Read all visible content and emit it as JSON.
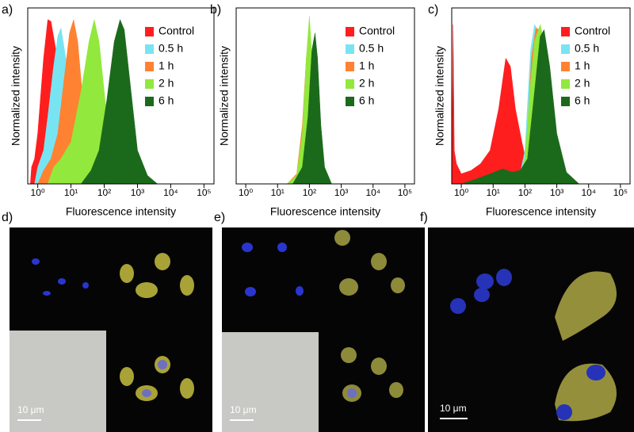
{
  "chart_data": [
    {
      "type": "area",
      "panel_label": "a)",
      "xlabel": "Fluorescence intensity",
      "ylabel": "Normalized intensity",
      "xscale": "log",
      "xlim": [
        0.5,
        200000
      ],
      "ylim": [
        0,
        1.05
      ],
      "xticks": [
        {
          "value": 1,
          "label": "10⁰"
        },
        {
          "value": 10,
          "label": "10¹"
        },
        {
          "value": 100,
          "label": "10²"
        },
        {
          "value": 1000,
          "label": "10³"
        },
        {
          "value": 10000,
          "label": "10⁴"
        },
        {
          "value": 100000,
          "label": "10⁵"
        }
      ],
      "series": [
        {
          "name": "Control",
          "color": "#ff1e1e",
          "x": [
            0.6,
            0.65,
            0.8,
            1,
            1.5,
            2,
            2.5,
            3.5,
            5,
            8,
            12
          ],
          "values": [
            0,
            0.1,
            0.15,
            0.3,
            0.75,
            0.98,
            0.97,
            0.8,
            0.45,
            0.1,
            0
          ]
        },
        {
          "name": "0.5 h",
          "color": "#78e4f2",
          "x": [
            0.8,
            1,
            1.5,
            2,
            3,
            4,
            5,
            7,
            10,
            15,
            25
          ],
          "values": [
            0,
            0.1,
            0.2,
            0.4,
            0.7,
            0.88,
            0.93,
            0.75,
            0.4,
            0.1,
            0
          ]
        },
        {
          "name": "1 h",
          "color": "#ff8232",
          "x": [
            1,
            1.5,
            2.5,
            4,
            6,
            9,
            12,
            16,
            25,
            40,
            70
          ],
          "values": [
            0,
            0.08,
            0.15,
            0.3,
            0.6,
            0.9,
            0.98,
            0.85,
            0.4,
            0.1,
            0
          ]
        },
        {
          "name": "2 h",
          "color": "#92e83c",
          "x": [
            2,
            3,
            5,
            10,
            20,
            35,
            50,
            70,
            120,
            200,
            400
          ],
          "values": [
            0,
            0.1,
            0.15,
            0.25,
            0.55,
            0.85,
            0.98,
            0.85,
            0.4,
            0.1,
            0
          ]
        },
        {
          "name": "6 h",
          "color": "#1b6a1b",
          "x": [
            20,
            40,
            70,
            120,
            200,
            300,
            400,
            600,
            1000,
            2000,
            4000
          ],
          "values": [
            0,
            0.08,
            0.2,
            0.5,
            0.85,
            0.98,
            0.92,
            0.6,
            0.2,
            0.05,
            0
          ]
        }
      ]
    },
    {
      "type": "area",
      "panel_label": "b)",
      "xlabel": "Fluorescence intensity",
      "ylabel": "Normalized intensity",
      "xscale": "log",
      "xlim": [
        0.5,
        200000
      ],
      "ylim": [
        0,
        1.05
      ],
      "xticks": [
        {
          "value": 1,
          "label": "10⁰"
        },
        {
          "value": 10,
          "label": "10¹"
        },
        {
          "value": 100,
          "label": "10²"
        },
        {
          "value": 1000,
          "label": "10³"
        },
        {
          "value": 10000,
          "label": "10⁴"
        },
        {
          "value": 100000,
          "label": "10⁵"
        }
      ],
      "series": [
        {
          "name": "Control",
          "color": "#ff1e1e",
          "x": [
            20,
            40,
            60,
            80,
            100,
            120,
            150,
            200,
            300
          ],
          "values": [
            0,
            0.05,
            0.3,
            0.7,
            0.85,
            0.7,
            0.35,
            0.08,
            0
          ]
        },
        {
          "name": "0.5 h",
          "color": "#78e4f2",
          "x": [
            20,
            40,
            60,
            80,
            100,
            120,
            150,
            200,
            300
          ],
          "values": [
            0,
            0.05,
            0.3,
            0.75,
            0.93,
            0.7,
            0.3,
            0.05,
            0
          ]
        },
        {
          "name": "1 h",
          "color": "#ff8232",
          "x": [
            20,
            40,
            60,
            80,
            100,
            120,
            150,
            200,
            300
          ],
          "values": [
            0,
            0.06,
            0.35,
            0.75,
            0.9,
            0.65,
            0.3,
            0.05,
            0
          ]
        },
        {
          "name": "2 h",
          "color": "#92e83c",
          "x": [
            20,
            40,
            60,
            80,
            100,
            120,
            150,
            200,
            300
          ],
          "values": [
            0,
            0.05,
            0.3,
            0.75,
            1.0,
            0.75,
            0.3,
            0.05,
            0
          ]
        },
        {
          "name": "6 h",
          "color": "#1b6a1b",
          "x": [
            30,
            60,
            90,
            120,
            150,
            180,
            230,
            300,
            500
          ],
          "values": [
            0,
            0.1,
            0.4,
            0.8,
            0.9,
            0.75,
            0.35,
            0.1,
            0
          ]
        }
      ]
    },
    {
      "type": "area",
      "panel_label": "c)",
      "xlabel": "Fluorescence intensity",
      "ylabel": "Normalized intensity",
      "xscale": "log",
      "xlim": [
        0.5,
        200000
      ],
      "ylim": [
        0,
        1.05
      ],
      "xticks": [
        {
          "value": 1,
          "label": "10⁰"
        },
        {
          "value": 10,
          "label": "10¹"
        },
        {
          "value": 100,
          "label": "10²"
        },
        {
          "value": 1000,
          "label": "10³"
        },
        {
          "value": 10000,
          "label": "10⁴"
        },
        {
          "value": 100000,
          "label": "10⁵"
        }
      ],
      "series": [
        {
          "name": "Control",
          "color": "#ff1e1e",
          "x": [
            0.5,
            0.55,
            0.6,
            0.7,
            1,
            2,
            4,
            8,
            15,
            25,
            35,
            50,
            80,
            120,
            150
          ],
          "values": [
            0,
            0.95,
            0.2,
            0.12,
            0.06,
            0.08,
            0.12,
            0.2,
            0.45,
            0.75,
            0.7,
            0.45,
            0.25,
            0.1,
            0
          ]
        },
        {
          "name": "0.5 h",
          "color": "#78e4f2",
          "x": [
            60,
            100,
            150,
            200,
            250,
            300,
            400,
            600,
            1000,
            2000
          ],
          "values": [
            0,
            0.2,
            0.8,
            0.95,
            0.92,
            0.85,
            0.55,
            0.25,
            0.06,
            0
          ]
        },
        {
          "name": "1 h",
          "color": "#ff8232",
          "x": [
            70,
            110,
            160,
            220,
            280,
            350,
            450,
            700,
            1100,
            2200
          ],
          "values": [
            0,
            0.18,
            0.75,
            0.93,
            0.92,
            0.85,
            0.55,
            0.25,
            0.06,
            0
          ]
        },
        {
          "name": "2 h",
          "color": "#92e83c",
          "x": [
            60,
            100,
            150,
            200,
            300,
            400,
            600,
            1000,
            2000
          ],
          "values": [
            0,
            0.15,
            0.6,
            0.85,
            0.95,
            0.85,
            0.45,
            0.1,
            0
          ]
        },
        {
          "name": "6 h",
          "color": "#1b6a1b",
          "x": [
            1,
            3,
            8,
            20,
            40,
            70,
            120,
            200,
            300,
            400,
            600,
            1000,
            2000,
            5000
          ],
          "values": [
            0,
            0.03,
            0.06,
            0.09,
            0.07,
            0.08,
            0.15,
            0.55,
            0.88,
            0.92,
            0.7,
            0.3,
            0.07,
            0
          ]
        }
      ]
    }
  ],
  "images": [
    {
      "panel_label": "d)",
      "scalebar": "10 μm"
    },
    {
      "panel_label": "e)",
      "scalebar": "10 μm"
    },
    {
      "panel_label": "f)",
      "scalebar": "10 μm"
    }
  ]
}
